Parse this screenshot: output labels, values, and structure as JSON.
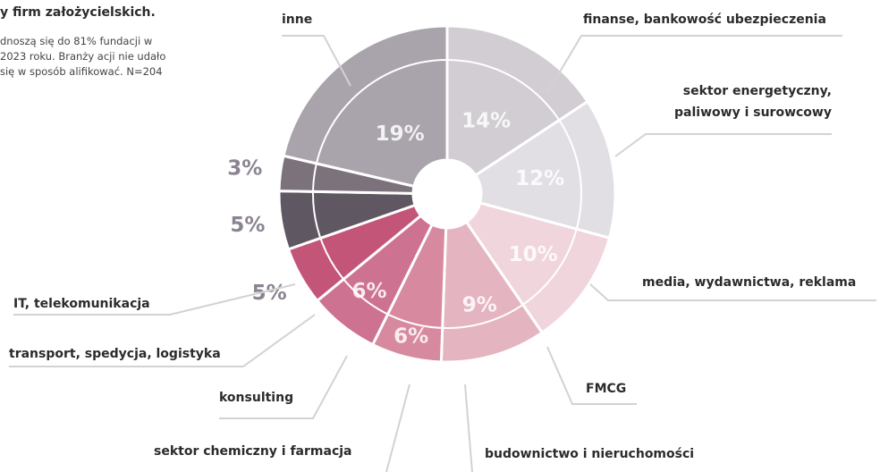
{
  "title": "y firm założycielskich.",
  "note": "dnoszą się do 81% fundacji w 2023 roku. Branży acji nie udało się w sposób alifikować. N=204",
  "chart_data": {
    "type": "donut",
    "categories": [
      "finanse, bankowość ubezpieczenia",
      "sektor energetyczny, paliwowy i surowcowy",
      "media, wydawnictwa, reklama",
      "FMCG",
      "budownictwo i nieruchomości",
      "sektor chemiczny i farmacja",
      "konsulting",
      "transport, spedycja, logistyka",
      "IT, telekomunikacja",
      "inne"
    ],
    "values": [
      14,
      12,
      10,
      9,
      6,
      6,
      5,
      5,
      3,
      19
    ],
    "value_labels": [
      "14%",
      "12%",
      "10%",
      "9%",
      "6%",
      "6%",
      "5%",
      "5%",
      "3%",
      "19%"
    ],
    "colors": [
      "#d1cdd3",
      "#e2dfe4",
      "#f0d5dc",
      "#e4b4c1",
      "#d6899f",
      "#cd7290",
      "#c35579",
      "#5f5761",
      "#7b727c",
      "#a9a3ab"
    ]
  }
}
